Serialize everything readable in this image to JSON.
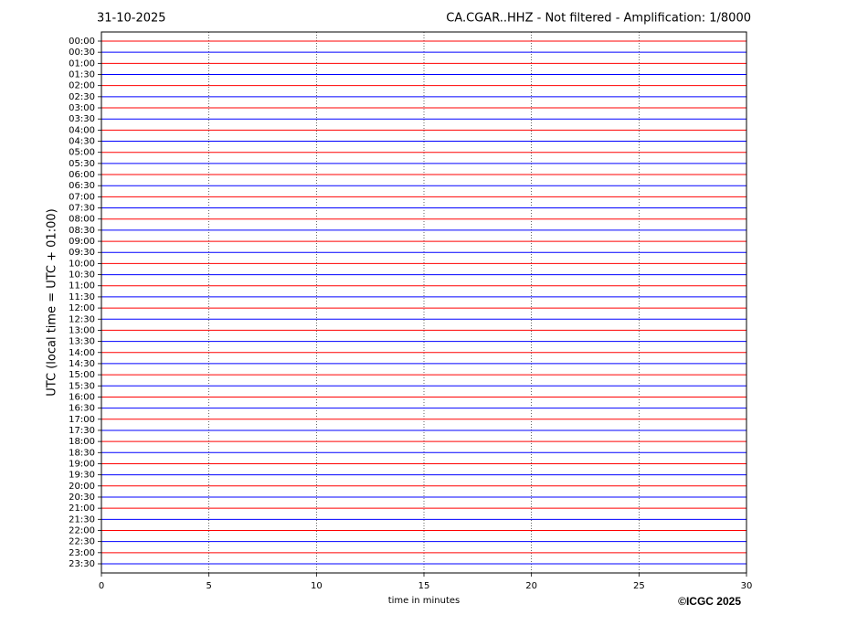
{
  "chart_data": {
    "type": "helicorder",
    "title": "31-10-2025",
    "subtitle": "CA.CGAR..HHZ - Not filtered - Amplification: 1/8000",
    "ylabel": "UTC (local time = UTC + 01:00)",
    "xlabel": "time in minutes",
    "copyright": "©ICGC 2025",
    "categories": [
      "00:00",
      "00:30",
      "01:00",
      "01:30",
      "02:00",
      "02:30",
      "03:00",
      "03:30",
      "04:00",
      "04:30",
      "05:00",
      "05:30",
      "06:00",
      "06:30",
      "07:00",
      "07:30",
      "08:00",
      "08:30",
      "09:00",
      "09:30",
      "10:00",
      "10:30",
      "11:00",
      "11:30",
      "12:00",
      "12:30",
      "13:00",
      "13:30",
      "14:00",
      "14:30",
      "15:00",
      "15:30",
      "16:00",
      "16:30",
      "17:00",
      "17:30",
      "18:00",
      "18:30",
      "19:00",
      "19:30",
      "20:00",
      "20:30",
      "21:00",
      "21:30",
      "22:00",
      "22:30",
      "23:00",
      "23:30"
    ],
    "colors": [
      "#ff0000",
      "#0000ff"
    ],
    "xlim": [
      0,
      30
    ],
    "xticks": [
      0,
      5,
      10,
      15,
      20,
      25,
      30
    ],
    "grid": true
  }
}
